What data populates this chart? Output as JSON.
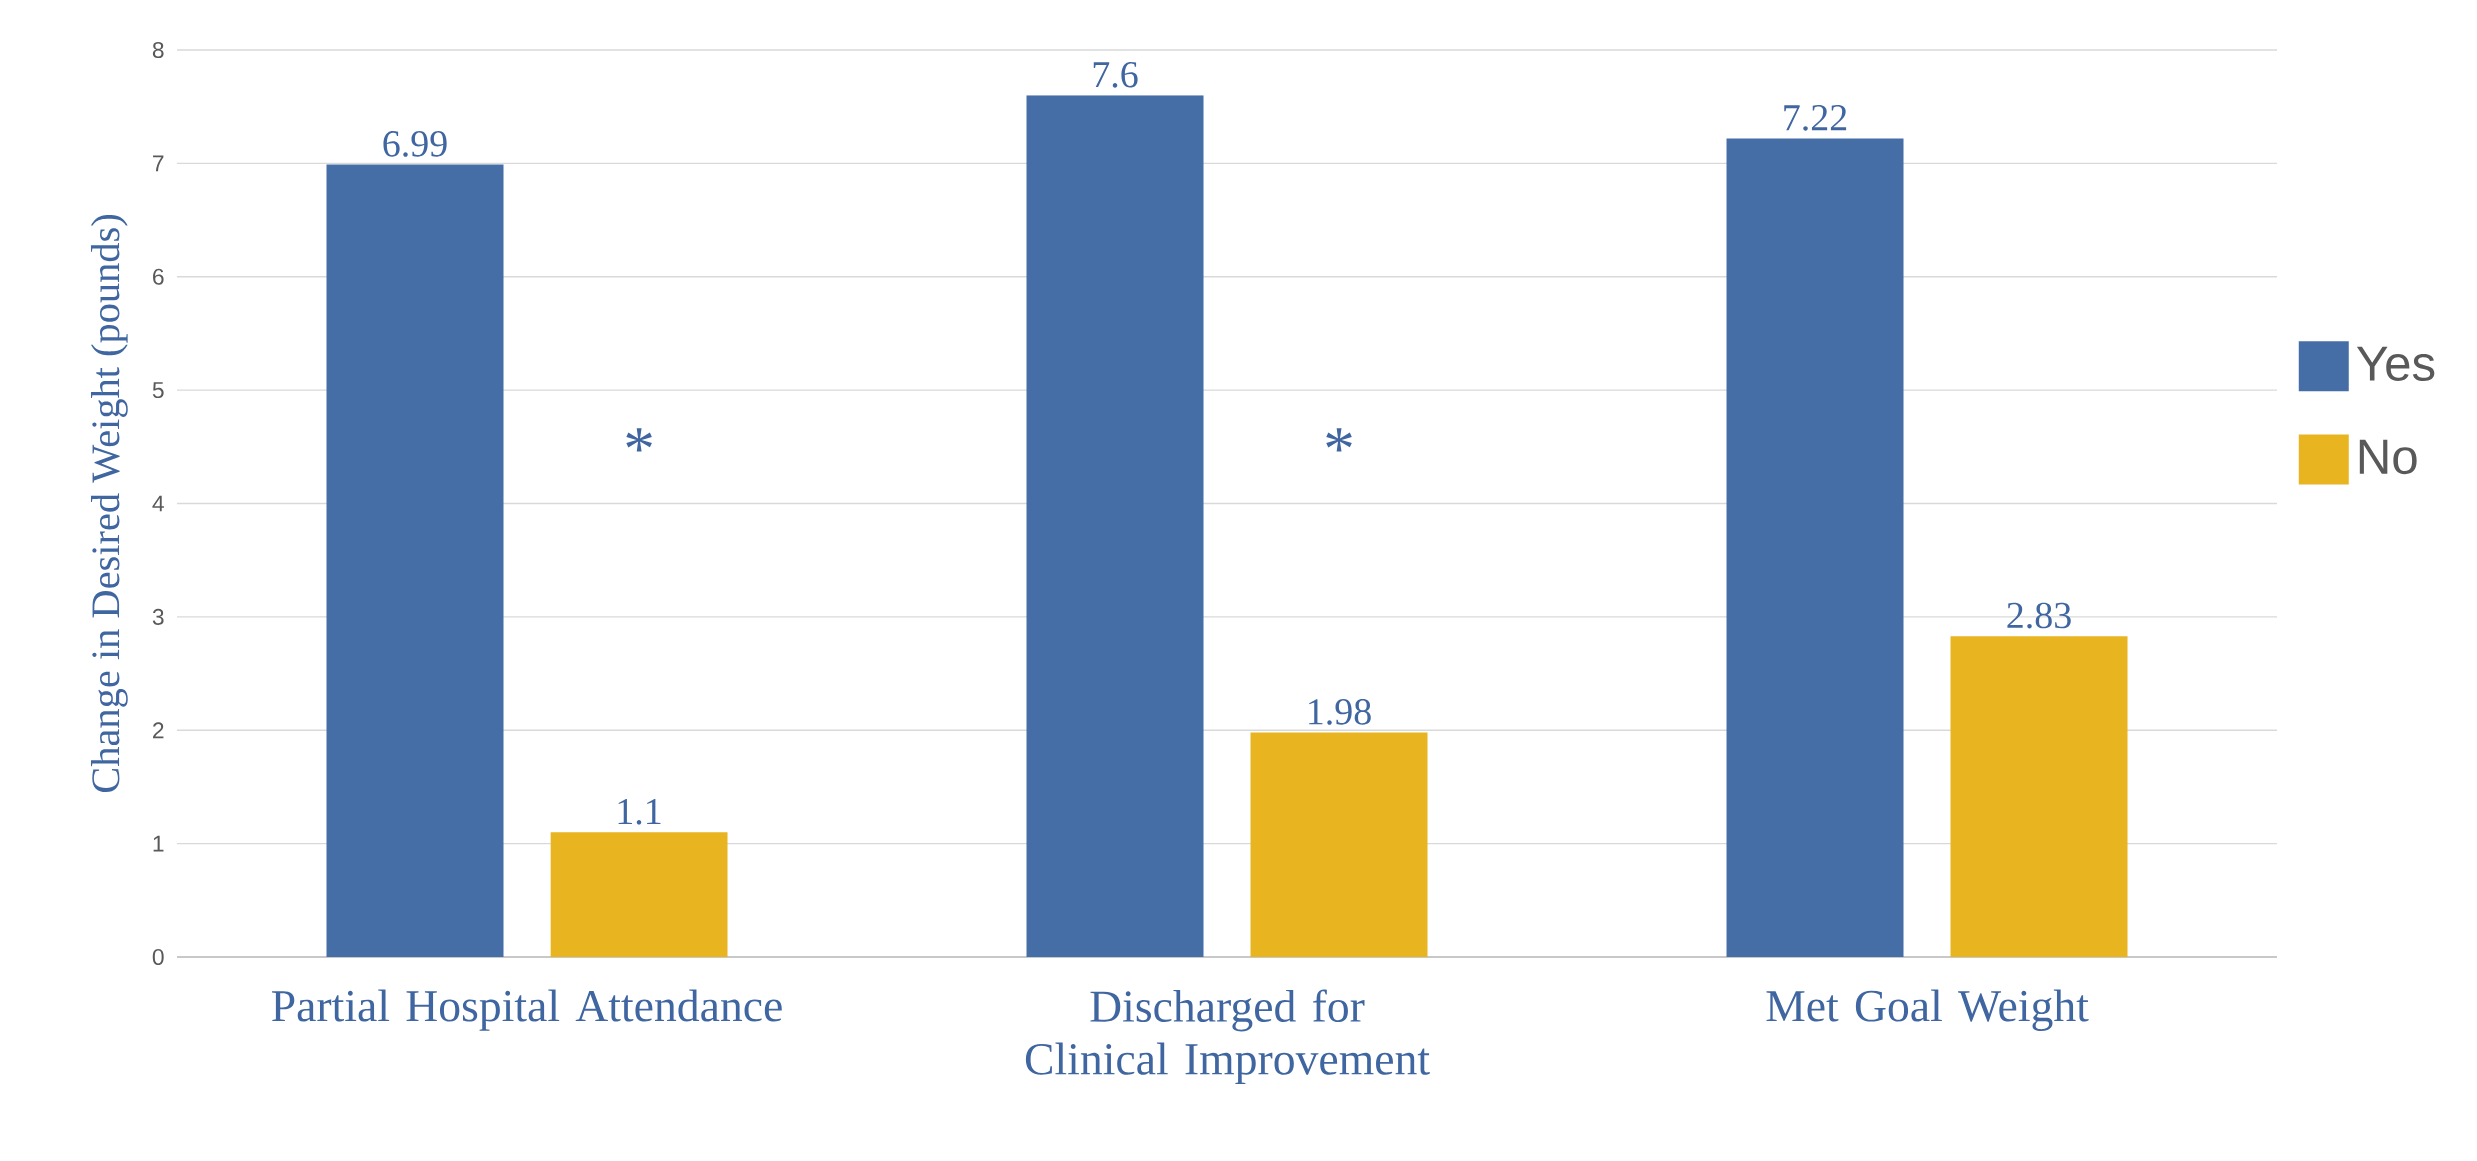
{
  "chart_data": {
    "type": "bar",
    "ylabel": "Change in Desired Weight (pounds)",
    "categories": [
      "Partial Hospital Attendance",
      "Discharged for Clinical Improvement",
      "Met Goal Weight"
    ],
    "series": [
      {
        "name": "Yes",
        "color": "#466ea6",
        "values": [
          6.99,
          7.6,
          7.22
        ]
      },
      {
        "name": "No",
        "color": "#e8b520",
        "values": [
          1.1,
          1.98,
          2.83
        ]
      }
    ],
    "ylim": [
      0,
      8
    ],
    "yticks": [
      0,
      1,
      2,
      3,
      4,
      5,
      6,
      7,
      8
    ],
    "grid": "y",
    "legend": "right",
    "data_labels": true,
    "annotations": [
      "*",
      "*"
    ]
  }
}
